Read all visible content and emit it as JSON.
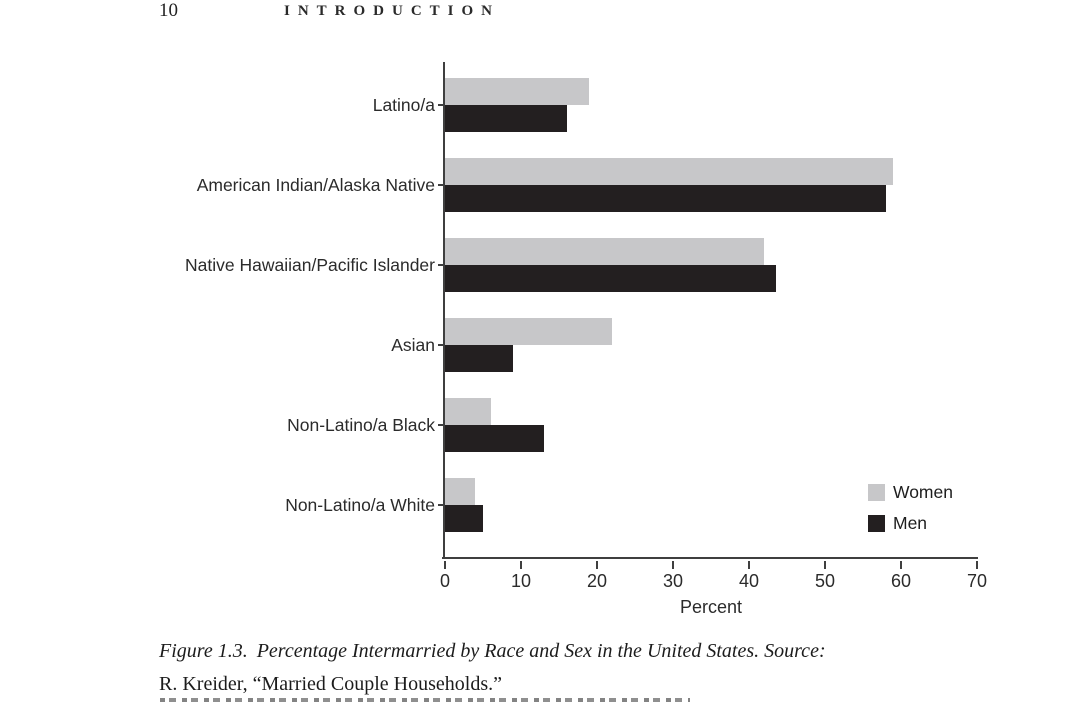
{
  "page": {
    "page_number": "10",
    "running_head": "INTRODUCTION"
  },
  "chart_data": {
    "type": "bar",
    "orientation": "horizontal",
    "categories": [
      "Latino/a",
      "American Indian/Alaska Native",
      "Native Hawaiian/Pacific Islander",
      "Asian",
      "Non-Latino/a Black",
      "Non-Latino/a White"
    ],
    "series": [
      {
        "name": "Women",
        "color": "#c7c7c9",
        "values": [
          19,
          59,
          42,
          22,
          6,
          4
        ]
      },
      {
        "name": "Men",
        "color": "#231f20",
        "values": [
          16,
          58,
          43.5,
          9,
          13,
          5
        ]
      }
    ],
    "xlabel": "Percent",
    "xlim": [
      0,
      70
    ],
    "xticks": [
      "0",
      "10",
      "20",
      "30",
      "40",
      "50",
      "60",
      "70"
    ],
    "grid": false,
    "legend_position": "lower right",
    "axis_color": "#3f3f3f"
  },
  "caption": {
    "figure_label": "Figure 1.3.",
    "title_italic": "Percentage Intermarried by Race and Sex in the United States. Source:",
    "source_line": "R. Kreider, “Married Couple Households.”"
  }
}
